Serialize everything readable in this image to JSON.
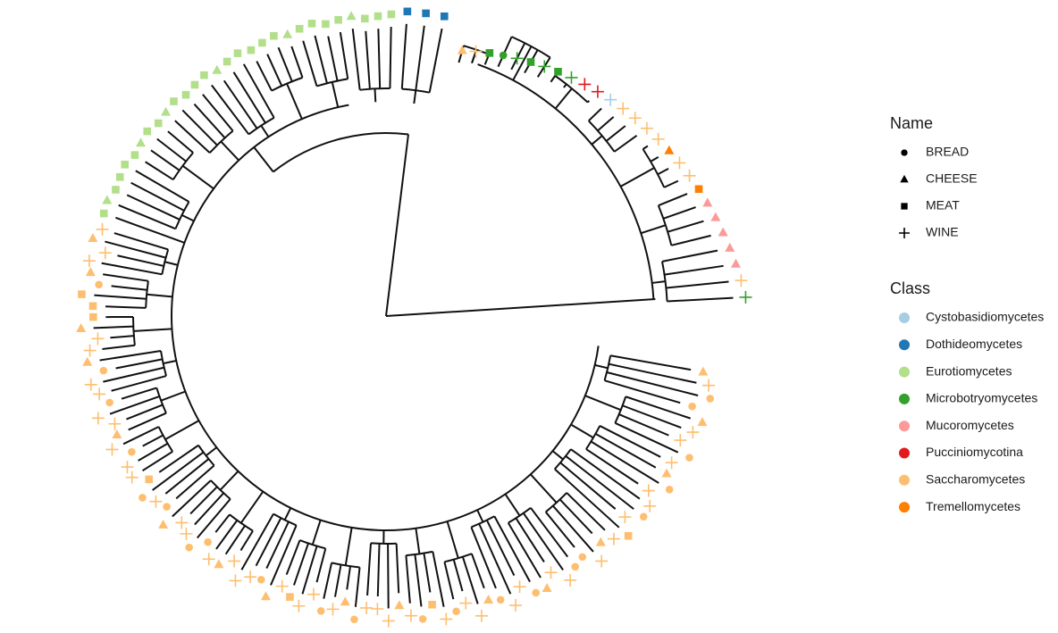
{
  "legend": {
    "name": {
      "title": "Name",
      "items": [
        "BREAD",
        "CHEESE",
        "MEAT",
        "WINE"
      ]
    },
    "class": {
      "title": "Class",
      "items": [
        {
          "label": "Cystobasidiomycetes",
          "color": "#a6cee3"
        },
        {
          "label": "Dothideomycetes",
          "color": "#1f78b4"
        },
        {
          "label": "Eurotiomycetes",
          "color": "#b2df8a"
        },
        {
          "label": "Microbotryomycetes",
          "color": "#33a02c"
        },
        {
          "label": "Mucoromycetes",
          "color": "#fb9a99"
        },
        {
          "label": "Pucciniomycotina",
          "color": "#e31a1c"
        },
        {
          "label": "Saccharomycetes",
          "color": "#fdbf6f"
        },
        {
          "label": "Tremellomycetes",
          "color": "#ff7f00"
        }
      ]
    }
  }
}
